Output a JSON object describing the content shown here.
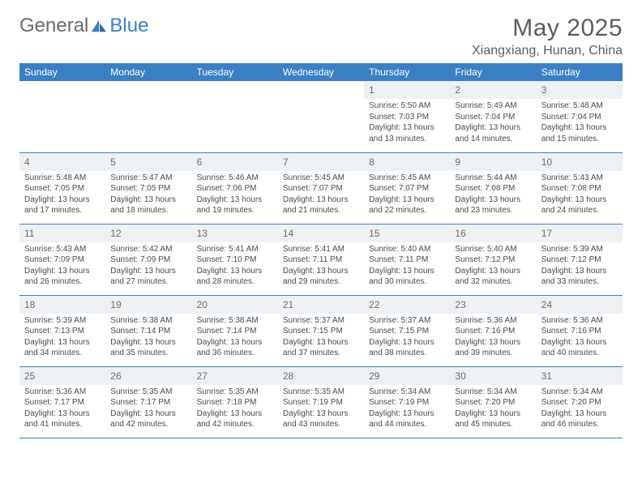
{
  "brand": {
    "part1": "General",
    "part2": "Blue"
  },
  "title": "May 2025",
  "location": "Xiangxiang, Hunan, China",
  "colors": {
    "header_bg": "#3b7fc4",
    "header_fg": "#ffffff",
    "daynum_bg": "#eef1f4",
    "text": "#4a4a4a",
    "title": "#5d5d5d",
    "rule": "#3b7fc4"
  },
  "dow": [
    "Sunday",
    "Monday",
    "Tuesday",
    "Wednesday",
    "Thursday",
    "Friday",
    "Saturday"
  ],
  "layout": {
    "first_weekday_index": 4,
    "days_in_month": 31
  },
  "days": {
    "1": {
      "sunrise": "5:50 AM",
      "sunset": "7:03 PM",
      "daylight": "13 hours and 13 minutes."
    },
    "2": {
      "sunrise": "5:49 AM",
      "sunset": "7:04 PM",
      "daylight": "13 hours and 14 minutes."
    },
    "3": {
      "sunrise": "5:48 AM",
      "sunset": "7:04 PM",
      "daylight": "13 hours and 15 minutes."
    },
    "4": {
      "sunrise": "5:48 AM",
      "sunset": "7:05 PM",
      "daylight": "13 hours and 17 minutes."
    },
    "5": {
      "sunrise": "5:47 AM",
      "sunset": "7:05 PM",
      "daylight": "13 hours and 18 minutes."
    },
    "6": {
      "sunrise": "5:46 AM",
      "sunset": "7:06 PM",
      "daylight": "13 hours and 19 minutes."
    },
    "7": {
      "sunrise": "5:45 AM",
      "sunset": "7:07 PM",
      "daylight": "13 hours and 21 minutes."
    },
    "8": {
      "sunrise": "5:45 AM",
      "sunset": "7:07 PM",
      "daylight": "13 hours and 22 minutes."
    },
    "9": {
      "sunrise": "5:44 AM",
      "sunset": "7:08 PM",
      "daylight": "13 hours and 23 minutes."
    },
    "10": {
      "sunrise": "5:43 AM",
      "sunset": "7:08 PM",
      "daylight": "13 hours and 24 minutes."
    },
    "11": {
      "sunrise": "5:43 AM",
      "sunset": "7:09 PM",
      "daylight": "13 hours and 26 minutes."
    },
    "12": {
      "sunrise": "5:42 AM",
      "sunset": "7:09 PM",
      "daylight": "13 hours and 27 minutes."
    },
    "13": {
      "sunrise": "5:41 AM",
      "sunset": "7:10 PM",
      "daylight": "13 hours and 28 minutes."
    },
    "14": {
      "sunrise": "5:41 AM",
      "sunset": "7:11 PM",
      "daylight": "13 hours and 29 minutes."
    },
    "15": {
      "sunrise": "5:40 AM",
      "sunset": "7:11 PM",
      "daylight": "13 hours and 30 minutes."
    },
    "16": {
      "sunrise": "5:40 AM",
      "sunset": "7:12 PM",
      "daylight": "13 hours and 32 minutes."
    },
    "17": {
      "sunrise": "5:39 AM",
      "sunset": "7:12 PM",
      "daylight": "13 hours and 33 minutes."
    },
    "18": {
      "sunrise": "5:39 AM",
      "sunset": "7:13 PM",
      "daylight": "13 hours and 34 minutes."
    },
    "19": {
      "sunrise": "5:38 AM",
      "sunset": "7:14 PM",
      "daylight": "13 hours and 35 minutes."
    },
    "20": {
      "sunrise": "5:38 AM",
      "sunset": "7:14 PM",
      "daylight": "13 hours and 36 minutes."
    },
    "21": {
      "sunrise": "5:37 AM",
      "sunset": "7:15 PM",
      "daylight": "13 hours and 37 minutes."
    },
    "22": {
      "sunrise": "5:37 AM",
      "sunset": "7:15 PM",
      "daylight": "13 hours and 38 minutes."
    },
    "23": {
      "sunrise": "5:36 AM",
      "sunset": "7:16 PM",
      "daylight": "13 hours and 39 minutes."
    },
    "24": {
      "sunrise": "5:36 AM",
      "sunset": "7:16 PM",
      "daylight": "13 hours and 40 minutes."
    },
    "25": {
      "sunrise": "5:36 AM",
      "sunset": "7:17 PM",
      "daylight": "13 hours and 41 minutes."
    },
    "26": {
      "sunrise": "5:35 AM",
      "sunset": "7:17 PM",
      "daylight": "13 hours and 42 minutes."
    },
    "27": {
      "sunrise": "5:35 AM",
      "sunset": "7:18 PM",
      "daylight": "13 hours and 42 minutes."
    },
    "28": {
      "sunrise": "5:35 AM",
      "sunset": "7:19 PM",
      "daylight": "13 hours and 43 minutes."
    },
    "29": {
      "sunrise": "5:34 AM",
      "sunset": "7:19 PM",
      "daylight": "13 hours and 44 minutes."
    },
    "30": {
      "sunrise": "5:34 AM",
      "sunset": "7:20 PM",
      "daylight": "13 hours and 45 minutes."
    },
    "31": {
      "sunrise": "5:34 AM",
      "sunset": "7:20 PM",
      "daylight": "13 hours and 46 minutes."
    }
  },
  "labels": {
    "sunrise": "Sunrise:",
    "sunset": "Sunset:",
    "daylight": "Daylight:"
  }
}
